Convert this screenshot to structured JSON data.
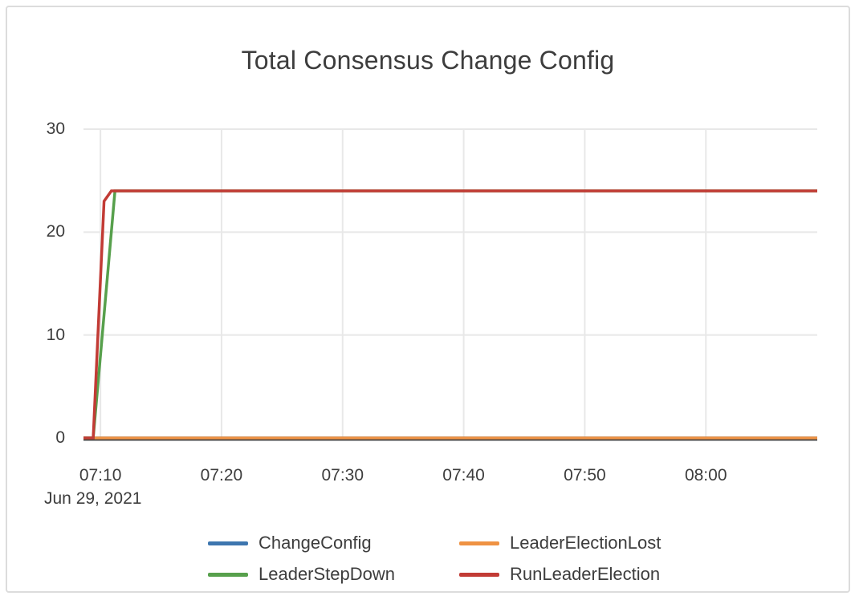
{
  "card": {
    "title": "Total Consensus Change Config"
  },
  "colors": {
    "text": "#3d3d3d",
    "grid": "#e8e8e8",
    "axis_line": "#333333",
    "card_border": "#dcdcdc",
    "background": "#ffffff",
    "series_blue": "#3d76af",
    "series_orange": "#ef9243",
    "series_green": "#57a04c",
    "series_red": "#c23b35"
  },
  "chart_data": {
    "type": "line",
    "title": "Total Consensus Change Config",
    "x_axis": {
      "date_label": "Jun 29, 2021",
      "unit": "minutes after 07:00 on Jun 29, 2021",
      "domain": [
        8.6,
        69.2
      ],
      "tick_values": [
        10,
        20,
        30,
        40,
        50,
        60
      ],
      "tick_labels": [
        "07:10",
        "07:20",
        "07:30",
        "07:40",
        "07:50",
        "08:00"
      ]
    },
    "y_axis": {
      "range": [
        0,
        30
      ],
      "tick_values": [
        0,
        10,
        20,
        30
      ],
      "tick_labels": [
        "0",
        "10",
        "20",
        "30"
      ]
    },
    "grid": true,
    "legend": {
      "position": "bottom",
      "columns": 2
    },
    "series": [
      {
        "name": "ChangeConfig",
        "color": "#3d76af",
        "points": [
          [
            8.6,
            0
          ],
          [
            69.2,
            0
          ]
        ]
      },
      {
        "name": "LeaderElectionLost",
        "color": "#ef9243",
        "points": [
          [
            8.6,
            0
          ],
          [
            69.2,
            0
          ]
        ]
      },
      {
        "name": "LeaderStepDown",
        "color": "#57a04c",
        "points": [
          [
            8.6,
            0
          ],
          [
            9.4,
            0
          ],
          [
            11.2,
            24
          ],
          [
            69.2,
            24
          ]
        ]
      },
      {
        "name": "RunLeaderElection",
        "color": "#c23b35",
        "points": [
          [
            8.6,
            0
          ],
          [
            9.4,
            0
          ],
          [
            10.3,
            23
          ],
          [
            10.9,
            24
          ],
          [
            69.2,
            24
          ]
        ]
      }
    ]
  }
}
